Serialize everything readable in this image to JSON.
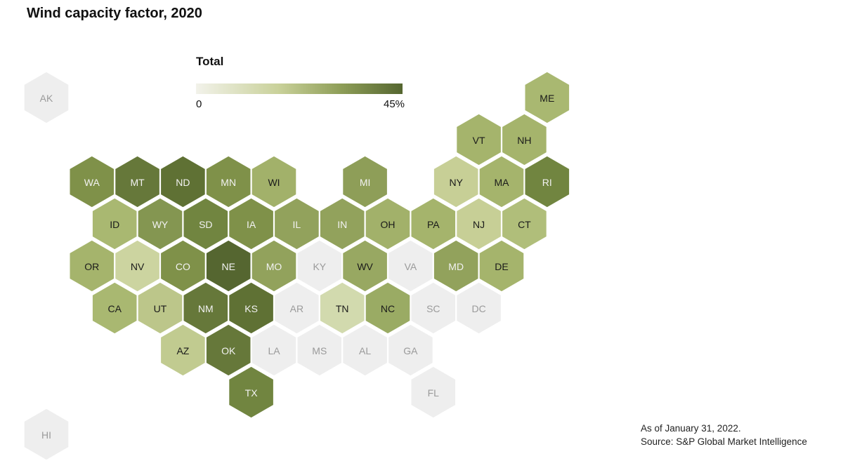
{
  "title": "Wind capacity factor, 2020",
  "legend": {
    "title": "Total",
    "min_label": "0",
    "max_label": "45%",
    "colors": [
      "#f2f2ea",
      "#c9d19a",
      "#8e9e58",
      "#556630"
    ]
  },
  "footer": {
    "line1": "As of January 31, 2022.",
    "line2": "Source: S&P Global Market Intelligence"
  },
  "chart_data": {
    "type": "hex-tile-map",
    "value_unit": "capacity factor (0–45%)",
    "states": [
      {
        "abbr": "AK",
        "row": 0,
        "col": 0,
        "has_data": false
      },
      {
        "abbr": "ME",
        "row": 0,
        "col": 11,
        "has_data": true,
        "color": "#a9b871"
      },
      {
        "abbr": "VT",
        "row": 1,
        "col": 9.5,
        "has_data": true,
        "color": "#a5b46c"
      },
      {
        "abbr": "NH",
        "row": 1,
        "col": 10.5,
        "has_data": true,
        "color": "#a5b46c"
      },
      {
        "abbr": "WA",
        "row": 2,
        "col": 1,
        "has_data": true,
        "color": "#7f9149"
      },
      {
        "abbr": "MT",
        "row": 2,
        "col": 2,
        "has_data": true,
        "color": "#66783a"
      },
      {
        "abbr": "ND",
        "row": 2,
        "col": 3,
        "has_data": true,
        "color": "#5f7134"
      },
      {
        "abbr": "MN",
        "row": 2,
        "col": 4,
        "has_data": true,
        "color": "#7f9149"
      },
      {
        "abbr": "WI",
        "row": 2,
        "col": 5,
        "has_data": true,
        "color": "#a2b16a"
      },
      {
        "abbr": "MI",
        "row": 2,
        "col": 7,
        "has_data": true,
        "color": "#8e9e58"
      },
      {
        "abbr": "NY",
        "row": 2,
        "col": 9,
        "has_data": true,
        "color": "#c7cf96"
      },
      {
        "abbr": "MA",
        "row": 2,
        "col": 10,
        "has_data": true,
        "color": "#a5b46c"
      },
      {
        "abbr": "RI",
        "row": 2,
        "col": 11,
        "has_data": true,
        "color": "#718540"
      },
      {
        "abbr": "ID",
        "row": 3,
        "col": 1.5,
        "has_data": true,
        "color": "#a9b871"
      },
      {
        "abbr": "WY",
        "row": 3,
        "col": 2.5,
        "has_data": true,
        "color": "#849651"
      },
      {
        "abbr": "SD",
        "row": 3,
        "col": 3.5,
        "has_data": true,
        "color": "#718540"
      },
      {
        "abbr": "IA",
        "row": 3,
        "col": 4.5,
        "has_data": true,
        "color": "#7f9149"
      },
      {
        "abbr": "IL",
        "row": 3,
        "col": 5.5,
        "has_data": true,
        "color": "#92a25c"
      },
      {
        "abbr": "IN",
        "row": 3,
        "col": 6.5,
        "has_data": true,
        "color": "#92a25c"
      },
      {
        "abbr": "OH",
        "row": 3,
        "col": 7.5,
        "has_data": true,
        "color": "#a2b16a"
      },
      {
        "abbr": "PA",
        "row": 3,
        "col": 8.5,
        "has_data": true,
        "color": "#a5b46c"
      },
      {
        "abbr": "NJ",
        "row": 3,
        "col": 9.5,
        "has_data": true,
        "color": "#c7cf96"
      },
      {
        "abbr": "CT",
        "row": 3,
        "col": 10.5,
        "has_data": true,
        "color": "#b0be7a"
      },
      {
        "abbr": "OR",
        "row": 4,
        "col": 1,
        "has_data": true,
        "color": "#a5b46c"
      },
      {
        "abbr": "NV",
        "row": 4,
        "col": 2,
        "has_data": true,
        "color": "#ccd4a0"
      },
      {
        "abbr": "CO",
        "row": 4,
        "col": 3,
        "has_data": true,
        "color": "#7f9149"
      },
      {
        "abbr": "NE",
        "row": 4,
        "col": 4,
        "has_data": true,
        "color": "#556630"
      },
      {
        "abbr": "MO",
        "row": 4,
        "col": 5,
        "has_data": true,
        "color": "#92a25c"
      },
      {
        "abbr": "KY",
        "row": 4,
        "col": 6,
        "has_data": false
      },
      {
        "abbr": "WV",
        "row": 4,
        "col": 7,
        "has_data": true,
        "color": "#98a862"
      },
      {
        "abbr": "VA",
        "row": 4,
        "col": 8,
        "has_data": false
      },
      {
        "abbr": "MD",
        "row": 4,
        "col": 9,
        "has_data": true,
        "color": "#92a25c"
      },
      {
        "abbr": "DE",
        "row": 4,
        "col": 10,
        "has_data": true,
        "color": "#a5b46c"
      },
      {
        "abbr": "CA",
        "row": 5,
        "col": 1.5,
        "has_data": true,
        "color": "#a9b871"
      },
      {
        "abbr": "UT",
        "row": 5,
        "col": 2.5,
        "has_data": true,
        "color": "#bcc68a"
      },
      {
        "abbr": "NM",
        "row": 5,
        "col": 3.5,
        "has_data": true,
        "color": "#66783a"
      },
      {
        "abbr": "KS",
        "row": 5,
        "col": 4.5,
        "has_data": true,
        "color": "#5f7134"
      },
      {
        "abbr": "AR",
        "row": 5,
        "col": 5.5,
        "has_data": false
      },
      {
        "abbr": "TN",
        "row": 5,
        "col": 6.5,
        "has_data": true,
        "color": "#d2daae"
      },
      {
        "abbr": "NC",
        "row": 5,
        "col": 7.5,
        "has_data": true,
        "color": "#9aab64"
      },
      {
        "abbr": "SC",
        "row": 5,
        "col": 8.5,
        "has_data": false
      },
      {
        "abbr": "DC",
        "row": 5,
        "col": 9.5,
        "has_data": false
      },
      {
        "abbr": "AZ",
        "row": 6,
        "col": 3,
        "has_data": true,
        "color": "#c1cb90"
      },
      {
        "abbr": "OK",
        "row": 6,
        "col": 4,
        "has_data": true,
        "color": "#66783a"
      },
      {
        "abbr": "LA",
        "row": 6,
        "col": 5,
        "has_data": false
      },
      {
        "abbr": "MS",
        "row": 6,
        "col": 6,
        "has_data": false
      },
      {
        "abbr": "AL",
        "row": 6,
        "col": 7,
        "has_data": false
      },
      {
        "abbr": "GA",
        "row": 6,
        "col": 8,
        "has_data": false
      },
      {
        "abbr": "TX",
        "row": 7,
        "col": 4.5,
        "has_data": true,
        "color": "#718540"
      },
      {
        "abbr": "FL",
        "row": 7,
        "col": 8.5,
        "has_data": false
      },
      {
        "abbr": "HI",
        "row": 8,
        "col": 0,
        "has_data": false
      }
    ],
    "no_data_color": "#eeeeee"
  }
}
